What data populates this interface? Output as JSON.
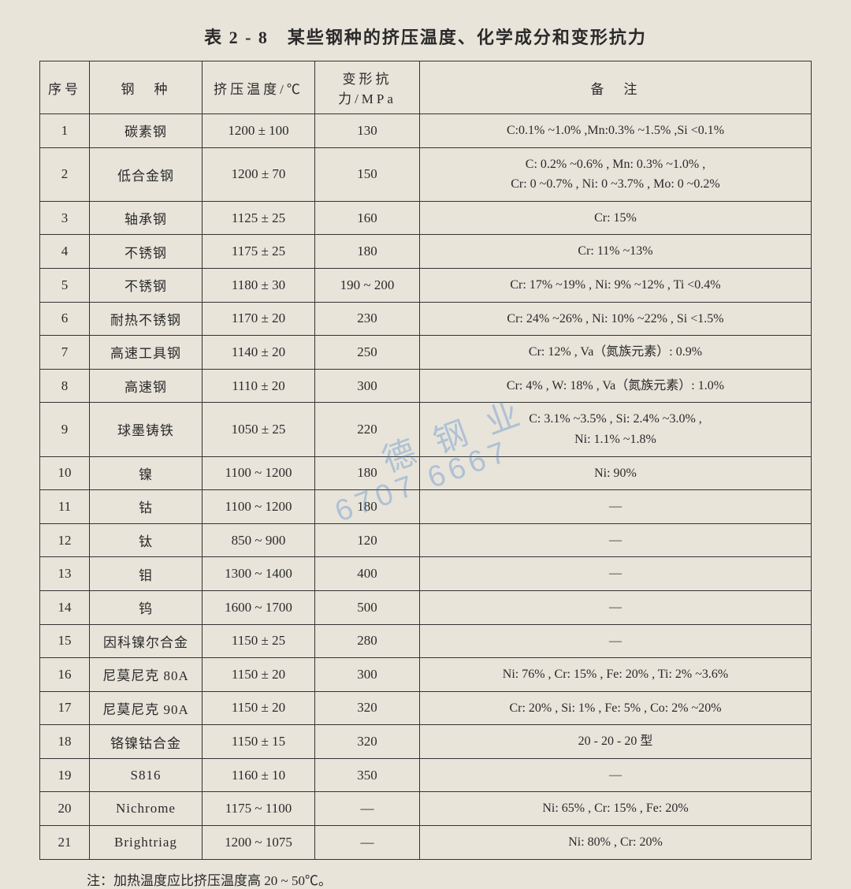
{
  "title": "表 2 - 8　某些钢种的挤压温度、化学成分和变形抗力",
  "columns": {
    "seq": "序号",
    "type": "钢　种",
    "temp": "挤压温度/℃",
    "def": "变形抗力/MPa",
    "note": "备　注"
  },
  "rows": [
    {
      "seq": "1",
      "type": "碳素钢",
      "temp": "1200 ± 100",
      "def": "130",
      "note": "C:0.1% ~1.0% ,Mn:0.3% ~1.5% ,Si <0.1%"
    },
    {
      "seq": "2",
      "type": "低合金钢",
      "temp": "1200 ± 70",
      "def": "150",
      "note": "C: 0.2% ~0.6% , Mn: 0.3% ~1.0% ,\nCr: 0 ~0.7% , Ni: 0 ~3.7% , Mo: 0 ~0.2%"
    },
    {
      "seq": "3",
      "type": "轴承钢",
      "temp": "1125 ± 25",
      "def": "160",
      "note": "Cr: 15%"
    },
    {
      "seq": "4",
      "type": "不锈钢",
      "temp": "1175 ± 25",
      "def": "180",
      "note": "Cr: 11% ~13%"
    },
    {
      "seq": "5",
      "type": "不锈钢",
      "temp": "1180 ± 30",
      "def": "190 ~ 200",
      "note": "Cr: 17% ~19% , Ni: 9% ~12% , Ti <0.4%"
    },
    {
      "seq": "6",
      "type": "耐热不锈钢",
      "temp": "1170 ± 20",
      "def": "230",
      "note": "Cr: 24% ~26% , Ni: 10% ~22% , Si <1.5%"
    },
    {
      "seq": "7",
      "type": "高速工具钢",
      "temp": "1140 ± 20",
      "def": "250",
      "note": "Cr: 12% , Va（氮族元素）: 0.9%"
    },
    {
      "seq": "8",
      "type": "高速钢",
      "temp": "1110 ± 20",
      "def": "300",
      "note": "Cr: 4% , W: 18% , Va（氮族元素）: 1.0%"
    },
    {
      "seq": "9",
      "type": "球墨铸铁",
      "temp": "1050 ± 25",
      "def": "220",
      "note": "C: 3.1% ~3.5% , Si: 2.4% ~3.0% ,\nNi: 1.1% ~1.8%"
    },
    {
      "seq": "10",
      "type": "镍",
      "temp": "1100 ~ 1200",
      "def": "180",
      "note": "Ni: 90%"
    },
    {
      "seq": "11",
      "type": "钴",
      "temp": "1100 ~ 1200",
      "def": "180",
      "note": "—"
    },
    {
      "seq": "12",
      "type": "钛",
      "temp": "850 ~ 900",
      "def": "120",
      "note": "—"
    },
    {
      "seq": "13",
      "type": "钼",
      "temp": "1300 ~ 1400",
      "def": "400",
      "note": "—"
    },
    {
      "seq": "14",
      "type": "钨",
      "temp": "1600 ~ 1700",
      "def": "500",
      "note": "—"
    },
    {
      "seq": "15",
      "type": "因科镍尔合金",
      "temp": "1150 ± 25",
      "def": "280",
      "note": "—"
    },
    {
      "seq": "16",
      "type": "尼莫尼克 80A",
      "temp": "1150 ± 20",
      "def": "300",
      "note": "Ni: 76% , Cr: 15% , Fe: 20% , Ti: 2% ~3.6%"
    },
    {
      "seq": "17",
      "type": "尼莫尼克 90A",
      "temp": "1150 ± 20",
      "def": "320",
      "note": "Cr: 20% , Si: 1% , Fe: 5% , Co: 2% ~20%"
    },
    {
      "seq": "18",
      "type": "铬镍钴合金",
      "temp": "1150 ± 15",
      "def": "320",
      "note": "20 - 20 - 20 型"
    },
    {
      "seq": "19",
      "type": "S816",
      "temp": "1160 ± 10",
      "def": "350",
      "note": "—"
    },
    {
      "seq": "20",
      "type": "Nichrome",
      "temp": "1175 ~ 1100",
      "def": "—",
      "note": "Ni: 65% , Cr: 15% , Fe: 20%"
    },
    {
      "seq": "21",
      "type": "Brightriag",
      "temp": "1200 ~ 1075",
      "def": "—",
      "note": "Ni: 80% , Cr: 20%"
    }
  ],
  "footnote": "注：加热温度应比挤压温度高 20 ~ 50℃。",
  "watermark1": "德 钢 业",
  "watermark2": "6707 6667"
}
